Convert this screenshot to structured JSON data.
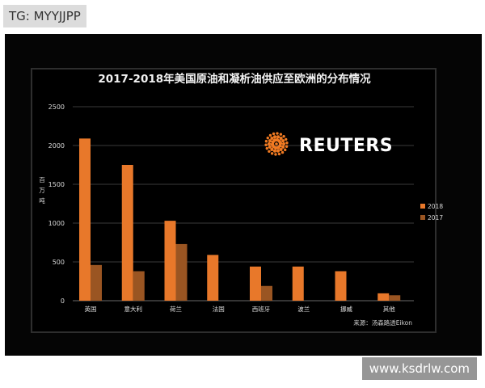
{
  "tag_label": "TG: MYYJJPP",
  "watermark_text": "www.ksdrlw.com",
  "chart_data": {
    "type": "bar",
    "title": "2017-2018年美国原油和凝析油供应至欧洲的分布情况",
    "ylabel": "百万吨",
    "xlabel": "",
    "categories": [
      "英国",
      "意大利",
      "荷兰",
      "法国",
      "西班牙",
      "波兰",
      "挪威",
      "其他"
    ],
    "series": [
      {
        "name": "2018",
        "color": "#e8782a",
        "values": [
          2090,
          1750,
          1030,
          590,
          440,
          440,
          380,
          95
        ]
      },
      {
        "name": "2017",
        "color": "#9a5522",
        "values": [
          460,
          380,
          730,
          null,
          190,
          null,
          null,
          70
        ]
      }
    ],
    "ylim": [
      0,
      2500
    ],
    "yticks": [
      0,
      500,
      1000,
      1500,
      2000,
      2500
    ],
    "grid": true,
    "legend_position": "right",
    "logo_text": "REUTERS",
    "source_note": "来源：汤森路透Eikon"
  }
}
